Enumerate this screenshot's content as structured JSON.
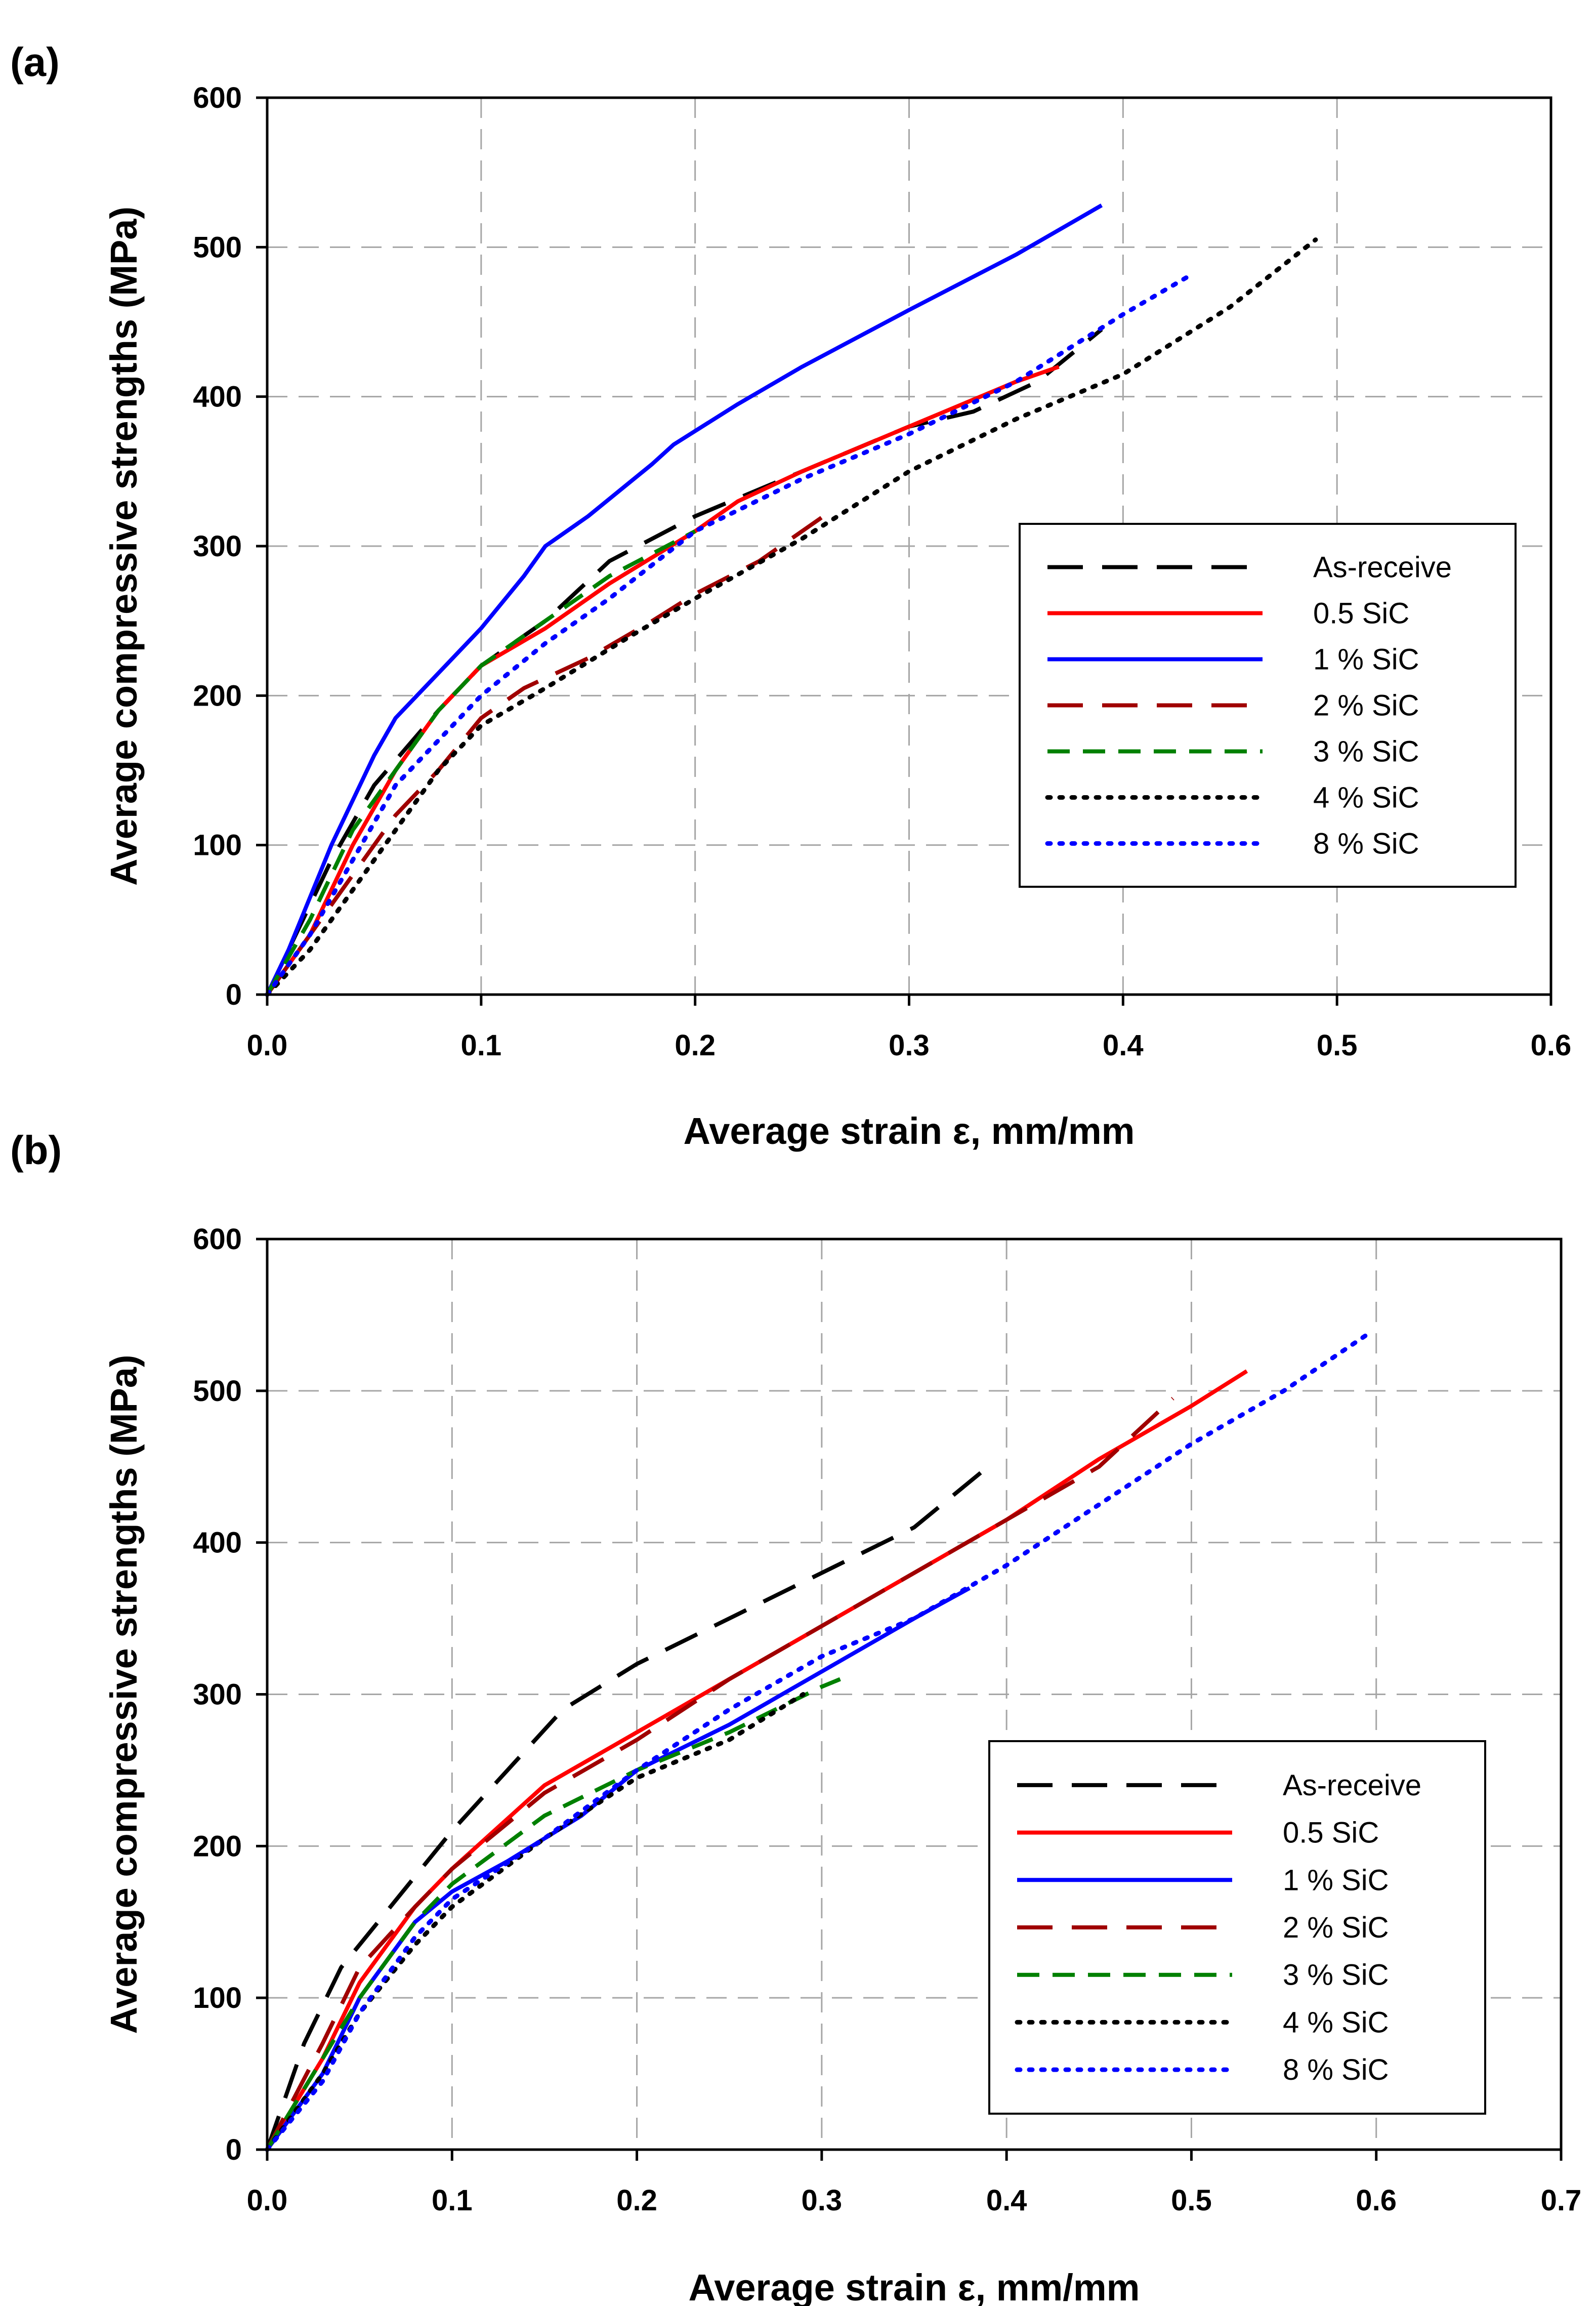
{
  "chart_data": [
    {
      "panel": "(a)",
      "type": "line",
      "xlabel": "Average strain ε, mm/mm",
      "ylabel": "Average compressive strengths (MPa)",
      "xlim": [
        0,
        0.6
      ],
      "ylim": [
        0,
        600
      ],
      "xticks": [
        "0.0",
        "0.1",
        "0.2",
        "0.3",
        "0.4",
        "0.5",
        "0.6"
      ],
      "yticks": [
        "0",
        "100",
        "200",
        "300",
        "400",
        "500",
        "600"
      ],
      "grid": true,
      "legend_position": "right",
      "series": [
        {
          "name": "As-receive",
          "color": "#000000",
          "style": "longdash",
          "points": [
            [
              0,
              0
            ],
            [
              0.01,
              30
            ],
            [
              0.03,
              90
            ],
            [
              0.05,
              140
            ],
            [
              0.08,
              190
            ],
            [
              0.1,
              220
            ],
            [
              0.13,
              250
            ],
            [
              0.16,
              290
            ],
            [
              0.2,
              320
            ],
            [
              0.25,
              350
            ],
            [
              0.3,
              380
            ],
            [
              0.33,
              390
            ],
            [
              0.36,
              410
            ],
            [
              0.39,
              445
            ]
          ]
        },
        {
          "name": "0.5 SiC",
          "color": "#ff0000",
          "style": "solid",
          "points": [
            [
              0,
              0
            ],
            [
              0.02,
              40
            ],
            [
              0.04,
              100
            ],
            [
              0.06,
              150
            ],
            [
              0.08,
              190
            ],
            [
              0.1,
              220
            ],
            [
              0.13,
              245
            ],
            [
              0.16,
              275
            ],
            [
              0.2,
              310
            ],
            [
              0.22,
              330
            ],
            [
              0.25,
              350
            ],
            [
              0.3,
              380
            ],
            [
              0.35,
              410
            ],
            [
              0.37,
              420
            ]
          ]
        },
        {
          "name": "1 % SiC",
          "color": "#0000ff",
          "style": "solid",
          "points": [
            [
              0,
              0
            ],
            [
              0.01,
              30
            ],
            [
              0.03,
              100
            ],
            [
              0.05,
              160
            ],
            [
              0.06,
              185
            ],
            [
              0.08,
              215
            ],
            [
              0.1,
              245
            ],
            [
              0.12,
              280
            ],
            [
              0.13,
              300
            ],
            [
              0.15,
              320
            ],
            [
              0.18,
              355
            ],
            [
              0.19,
              368
            ],
            [
              0.22,
              395
            ],
            [
              0.25,
              420
            ],
            [
              0.3,
              458
            ],
            [
              0.35,
              495
            ],
            [
              0.39,
              528
            ]
          ]
        },
        {
          "name": "2 % SiC",
          "color": "#a00000",
          "style": "longdash",
          "points": [
            [
              0,
              0
            ],
            [
              0.02,
              40
            ],
            [
              0.04,
              80
            ],
            [
              0.06,
              120
            ],
            [
              0.08,
              150
            ],
            [
              0.1,
              185
            ],
            [
              0.12,
              205
            ],
            [
              0.15,
              225
            ],
            [
              0.18,
              250
            ],
            [
              0.2,
              268
            ],
            [
              0.23,
              290
            ],
            [
              0.26,
              320
            ]
          ]
        },
        {
          "name": "3 % SiC",
          "color": "#008000",
          "style": "dash",
          "points": [
            [
              0,
              0
            ],
            [
              0.02,
              50
            ],
            [
              0.04,
              110
            ],
            [
              0.06,
              150
            ],
            [
              0.08,
              190
            ],
            [
              0.1,
              220
            ],
            [
              0.13,
              250
            ],
            [
              0.16,
              280
            ],
            [
              0.18,
              295
            ],
            [
              0.2,
              310
            ]
          ]
        },
        {
          "name": "4 % SiC",
          "color": "#000000",
          "style": "dot",
          "points": [
            [
              0,
              0
            ],
            [
              0.02,
              30
            ],
            [
              0.04,
              70
            ],
            [
              0.06,
              110
            ],
            [
              0.08,
              150
            ],
            [
              0.1,
              180
            ],
            [
              0.13,
              205
            ],
            [
              0.17,
              240
            ],
            [
              0.2,
              265
            ],
            [
              0.25,
              305
            ],
            [
              0.3,
              350
            ],
            [
              0.35,
              385
            ],
            [
              0.4,
              415
            ],
            [
              0.45,
              460
            ],
            [
              0.49,
              505
            ]
          ]
        },
        {
          "name": "8 % SiC",
          "color": "#0000ff",
          "style": "dot",
          "points": [
            [
              0,
              0
            ],
            [
              0.02,
              40
            ],
            [
              0.04,
              90
            ],
            [
              0.06,
              140
            ],
            [
              0.08,
              170
            ],
            [
              0.1,
              200
            ],
            [
              0.13,
              235
            ],
            [
              0.16,
              265
            ],
            [
              0.2,
              310
            ],
            [
              0.25,
              345
            ],
            [
              0.3,
              375
            ],
            [
              0.35,
              410
            ],
            [
              0.4,
              455
            ],
            [
              0.43,
              480
            ]
          ]
        }
      ]
    },
    {
      "panel": "(b)",
      "type": "line",
      "xlabel": "Average strain ε, mm/mm",
      "ylabel": "Average compressive strengths (MPa)",
      "xlim": [
        0,
        0.7
      ],
      "ylim": [
        0,
        600
      ],
      "xticks": [
        "0.0",
        "0.1",
        "0.2",
        "0.3",
        "0.4",
        "0.5",
        "0.6",
        "0.7"
      ],
      "yticks": [
        "0",
        "100",
        "200",
        "300",
        "400",
        "500",
        "600"
      ],
      "grid": true,
      "legend_position": "bottom-right",
      "series": [
        {
          "name": "As-receive",
          "color": "#000000",
          "style": "longdash",
          "points": [
            [
              0,
              0
            ],
            [
              0.02,
              70
            ],
            [
              0.04,
              120
            ],
            [
              0.06,
              150
            ],
            [
              0.1,
              210
            ],
            [
              0.13,
              250
            ],
            [
              0.16,
              290
            ],
            [
              0.2,
              320
            ],
            [
              0.25,
              350
            ],
            [
              0.3,
              380
            ],
            [
              0.35,
              410
            ],
            [
              0.39,
              450
            ]
          ]
        },
        {
          "name": "0.5 SiC",
          "color": "#ff0000",
          "style": "solid",
          "points": [
            [
              0,
              0
            ],
            [
              0.03,
              60
            ],
            [
              0.05,
              110
            ],
            [
              0.08,
              160
            ],
            [
              0.1,
              185
            ],
            [
              0.15,
              240
            ],
            [
              0.2,
              275
            ],
            [
              0.25,
              310
            ],
            [
              0.3,
              345
            ],
            [
              0.35,
              380
            ],
            [
              0.4,
              415
            ],
            [
              0.45,
              455
            ],
            [
              0.5,
              490
            ],
            [
              0.53,
              513
            ]
          ]
        },
        {
          "name": "1 % SiC",
          "color": "#0000ff",
          "style": "solid",
          "points": [
            [
              0,
              0
            ],
            [
              0.03,
              50
            ],
            [
              0.05,
              100
            ],
            [
              0.08,
              150
            ],
            [
              0.1,
              170
            ],
            [
              0.13,
              190
            ],
            [
              0.17,
              220
            ],
            [
              0.2,
              250
            ],
            [
              0.25,
              280
            ],
            [
              0.3,
              315
            ],
            [
              0.35,
              350
            ],
            [
              0.38,
              370
            ]
          ]
        },
        {
          "name": "2 % SiC",
          "color": "#a00000",
          "style": "longdash",
          "points": [
            [
              0,
              0
            ],
            [
              0.03,
              70
            ],
            [
              0.05,
              120
            ],
            [
              0.08,
              160
            ],
            [
              0.1,
              185
            ],
            [
              0.15,
              235
            ],
            [
              0.2,
              270
            ],
            [
              0.25,
              310
            ],
            [
              0.3,
              345
            ],
            [
              0.35,
              380
            ],
            [
              0.4,
              415
            ],
            [
              0.45,
              450
            ],
            [
              0.49,
              495
            ]
          ]
        },
        {
          "name": "3 % SiC",
          "color": "#008000",
          "style": "dash",
          "points": [
            [
              0,
              0
            ],
            [
              0.03,
              60
            ],
            [
              0.05,
              100
            ],
            [
              0.08,
              150
            ],
            [
              0.1,
              175
            ],
            [
              0.15,
              220
            ],
            [
              0.2,
              250
            ],
            [
              0.25,
              275
            ],
            [
              0.3,
              305
            ],
            [
              0.31,
              310
            ]
          ]
        },
        {
          "name": "4 % SiC",
          "color": "#000000",
          "style": "dot",
          "points": [
            [
              0,
              0
            ],
            [
              0.03,
              50
            ],
            [
              0.05,
              90
            ],
            [
              0.08,
              135
            ],
            [
              0.1,
              160
            ],
            [
              0.15,
              205
            ],
            [
              0.2,
              245
            ],
            [
              0.25,
              270
            ],
            [
              0.29,
              300
            ]
          ]
        },
        {
          "name": "8 % SiC",
          "color": "#0000ff",
          "style": "dot",
          "points": [
            [
              0,
              0
            ],
            [
              0.03,
              45
            ],
            [
              0.05,
              90
            ],
            [
              0.08,
              140
            ],
            [
              0.1,
              165
            ],
            [
              0.15,
              205
            ],
            [
              0.2,
              250
            ],
            [
              0.25,
              290
            ],
            [
              0.3,
              325
            ],
            [
              0.35,
              350
            ],
            [
              0.4,
              385
            ],
            [
              0.45,
              425
            ],
            [
              0.5,
              465
            ],
            [
              0.55,
              500
            ],
            [
              0.595,
              537
            ]
          ]
        }
      ]
    }
  ]
}
